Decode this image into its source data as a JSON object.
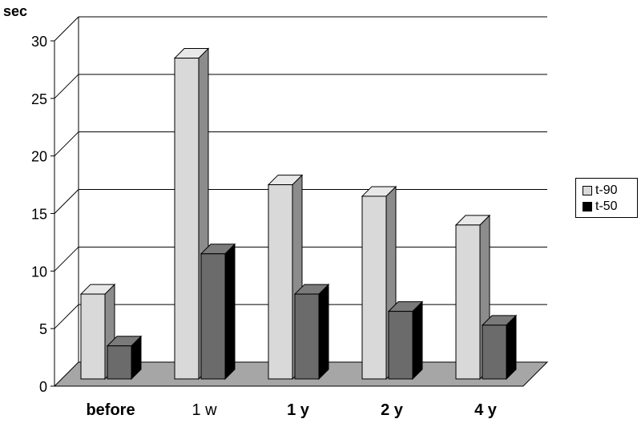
{
  "chart_data": {
    "type": "bar",
    "title": "",
    "ylabel": "sec",
    "xlabel": "",
    "ylim": [
      0,
      30
    ],
    "yticks": [
      0,
      5,
      10,
      15,
      20,
      25,
      30
    ],
    "grid": true,
    "legend_position": "right",
    "categories": [
      "before",
      "1 w",
      "1 y",
      "2 y",
      "4 y"
    ],
    "series": [
      {
        "name": "t-90",
        "values": [
          8,
          28.5,
          17.5,
          16.5,
          14
        ],
        "color": "#d9d9d9"
      },
      {
        "name": "t-50",
        "values": [
          3.5,
          11.5,
          8,
          6.5,
          5.3
        ],
        "color": "#6b6b6b"
      }
    ]
  }
}
